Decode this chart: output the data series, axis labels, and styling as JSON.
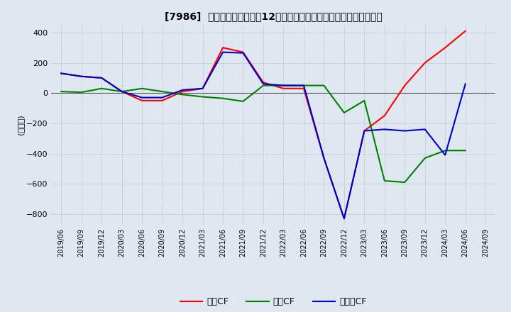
{
  "title": "[7986]  キャッシュフローの12か月移動合計の対前年同期増減額の推移",
  "ylabel": "(百万円)",
  "ylim": [
    -870,
    450
  ],
  "yticks": [
    -800,
    -600,
    -400,
    -200,
    0,
    200,
    400
  ],
  "bg_color": "#dfe8f0",
  "dates": [
    "2019/06",
    "2019/09",
    "2019/12",
    "2020/03",
    "2020/06",
    "2020/09",
    "2020/12",
    "2021/03",
    "2021/06",
    "2021/09",
    "2021/12",
    "2022/03",
    "2022/06",
    "2022/09",
    "2022/12",
    "2023/03",
    "2023/06",
    "2023/09",
    "2023/12",
    "2024/03",
    "2024/06",
    "2024/09"
  ],
  "operating_cf": [
    130,
    110,
    100,
    10,
    -50,
    -50,
    10,
    30,
    300,
    270,
    70,
    30,
    30,
    -430,
    -830,
    -250,
    -150,
    50,
    200,
    300,
    410,
    null
  ],
  "investing_cf": [
    10,
    5,
    30,
    10,
    30,
    10,
    -10,
    -25,
    -35,
    -55,
    50,
    50,
    50,
    50,
    -130,
    -50,
    -580,
    -590,
    -430,
    -380,
    -380,
    null
  ],
  "free_cf": [
    130,
    110,
    100,
    10,
    -30,
    -30,
    20,
    30,
    270,
    265,
    60,
    50,
    50,
    -430,
    -830,
    -250,
    -240,
    -250,
    -240,
    -410,
    60,
    null
  ],
  "legend_labels": [
    "営業CF",
    "投資CF",
    "フリーCF"
  ],
  "line_colors": [
    "#ff0000",
    "#008000",
    "#0000cc"
  ],
  "grid_style": "dotted",
  "grid_color": "#aaaaaa",
  "zero_line_color": "#555555"
}
